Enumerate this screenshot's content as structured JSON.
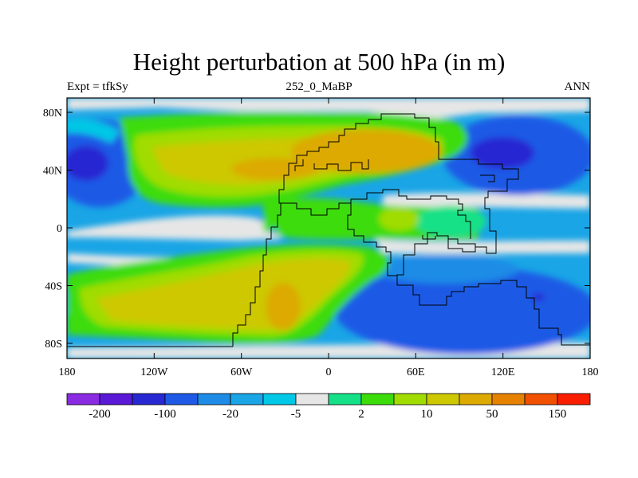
{
  "title": "Height perturbation at 500 hPa (in m)",
  "subtitle_left": "Expt = tfkSy",
  "subtitle_center": "252_0_MaBP",
  "subtitle_right": "ANN",
  "map": {
    "projection": "cylindrical-equidistant",
    "lon_range": [
      -180,
      180
    ],
    "lat_range": [
      -90,
      90
    ],
    "x_tick_labels": [
      "180",
      "120W",
      "60W",
      "0",
      "60E",
      "120E",
      "180"
    ],
    "y_tick_labels": [
      "80N",
      "40N",
      "0",
      "40S",
      "80S"
    ],
    "field": "filled contours of 500 hPa height perturbation; positive (green–orange) over the supercontinent and subtropical ocean bands, negative (blue) over polar/high-latitude oceans"
  },
  "colorbar": {
    "colors": [
      "#8a2be2",
      "#5a19d6",
      "#2828d2",
      "#1e5ae6",
      "#1e8ce6",
      "#19a5e6",
      "#00c8e6",
      "#e6e6e6",
      "#14e187",
      "#3cdc0a",
      "#a0dc00",
      "#cdc800",
      "#dcaa00",
      "#e68200",
      "#f05000",
      "#fa1e00"
    ],
    "labels": [
      "-200",
      "-100",
      "-20",
      "-5",
      "2",
      "10",
      "50",
      "150"
    ]
  },
  "colors": {
    "deep_negative": "#2828d2",
    "negative": "#1e8ce6",
    "near_zero": "#e6e6e6",
    "positive": "#3cdc0a",
    "strong_positive": "#dcaa00",
    "very_strong_positive": "#e68200"
  }
}
